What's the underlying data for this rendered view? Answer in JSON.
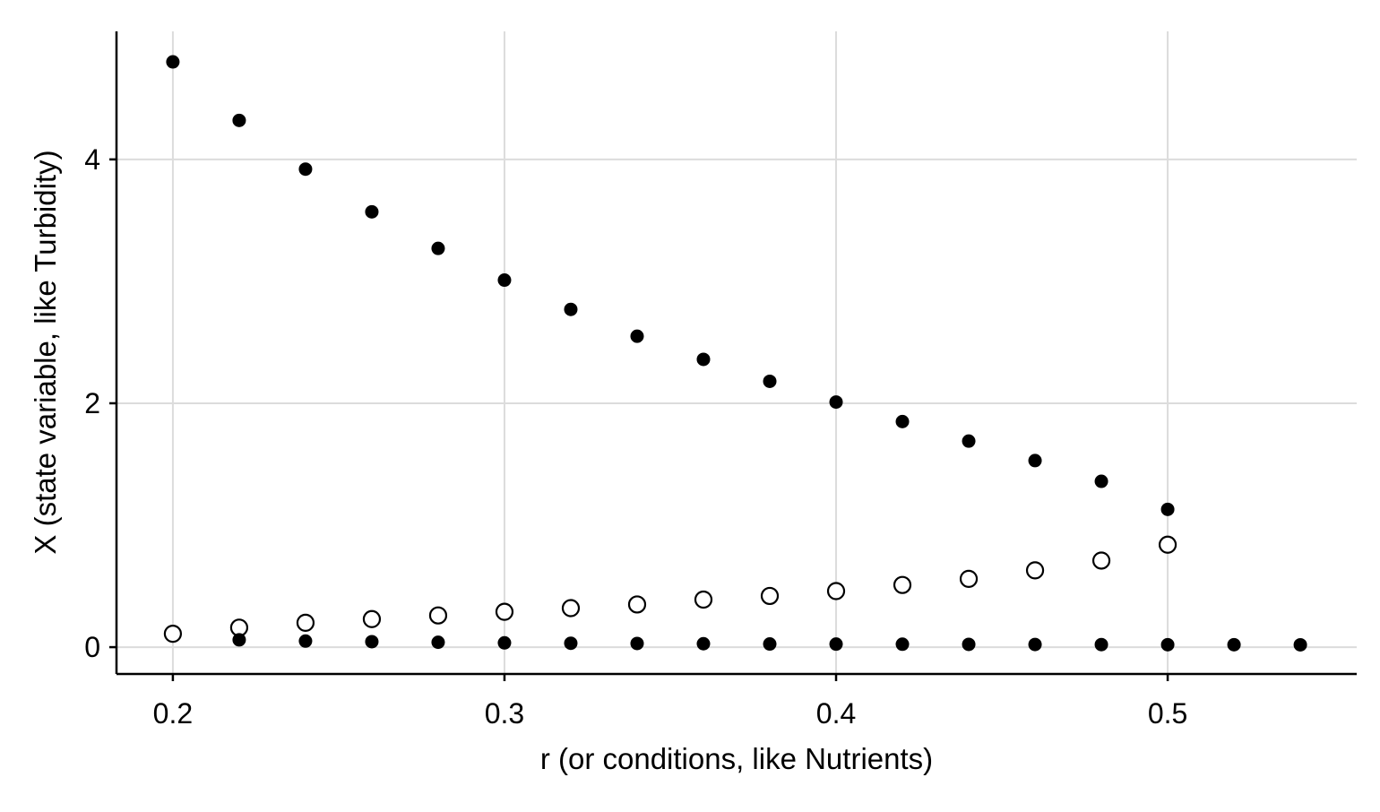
{
  "chart_data": {
    "type": "scatter",
    "title": "",
    "xlabel": "r (or conditions, like Nutrients)",
    "ylabel": "X (state variable, like Turbidity)",
    "xlim": [
      0.183,
      0.557
    ],
    "ylim": [
      -0.22,
      5.05
    ],
    "xticks": [
      0.2,
      0.3,
      0.4,
      0.5
    ],
    "xtick_labels": [
      "0.2",
      "0.3",
      "0.4",
      "0.5"
    ],
    "yticks": [
      0,
      2,
      4
    ],
    "ytick_labels": [
      "0",
      "2",
      "4"
    ],
    "grid": true,
    "legend": "none",
    "series": [
      {
        "marker": "filled",
        "color": "#000000",
        "x": [
          0.2,
          0.22,
          0.24,
          0.26,
          0.28,
          0.3,
          0.32,
          0.34,
          0.36,
          0.38,
          0.4,
          0.42,
          0.44,
          0.46,
          0.48,
          0.5
        ],
        "y": [
          4.8,
          4.32,
          3.92,
          3.57,
          3.27,
          3.01,
          2.77,
          2.55,
          2.36,
          2.18,
          2.01,
          1.85,
          1.69,
          1.53,
          1.36,
          1.13
        ]
      },
      {
        "marker": "open",
        "color": "#000000",
        "x": [
          0.2,
          0.22,
          0.24,
          0.26,
          0.28,
          0.3,
          0.32,
          0.34,
          0.36,
          0.38,
          0.4,
          0.42,
          0.44,
          0.46,
          0.48,
          0.5
        ],
        "y": [
          0.11,
          0.16,
          0.2,
          0.23,
          0.26,
          0.29,
          0.32,
          0.35,
          0.39,
          0.42,
          0.46,
          0.51,
          0.56,
          0.63,
          0.71,
          0.84
        ]
      },
      {
        "marker": "filled",
        "color": "#000000",
        "x": [
          0.22,
          0.24,
          0.26,
          0.28,
          0.3,
          0.32,
          0.34,
          0.36,
          0.38,
          0.4,
          0.42,
          0.44,
          0.46,
          0.48,
          0.5,
          0.52,
          0.54
        ],
        "y": [
          0.06,
          0.05,
          0.045,
          0.04,
          0.035,
          0.032,
          0.03,
          0.028,
          0.026,
          0.025,
          0.024,
          0.023,
          0.022,
          0.021,
          0.02,
          0.02,
          0.019
        ]
      }
    ]
  }
}
